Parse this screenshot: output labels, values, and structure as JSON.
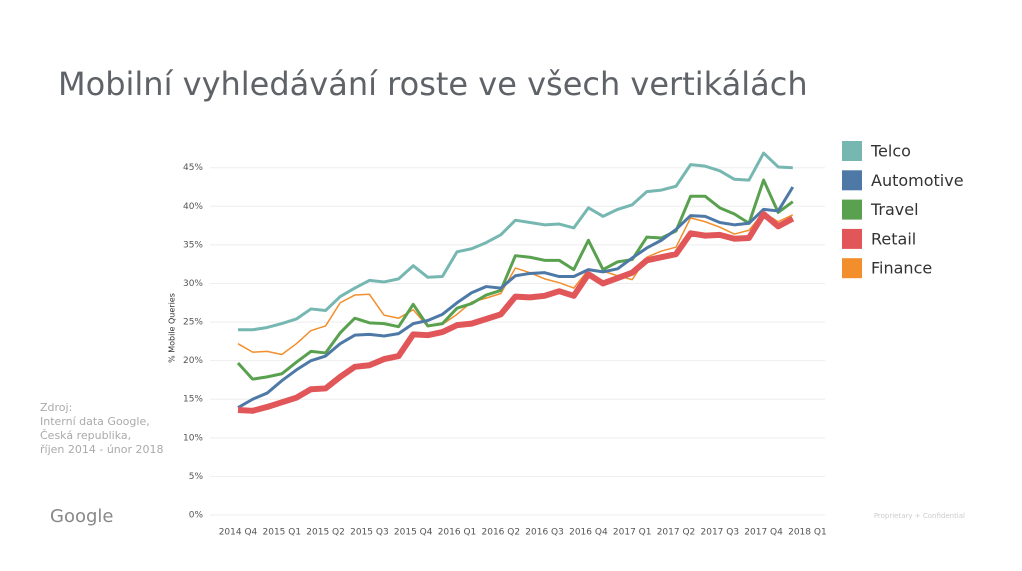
{
  "slide_title": "Mobilní vyhledávání roste ve všech vertikálách",
  "source": [
    "Zdroj:",
    "Interní data Google,",
    "Česká republika,",
    "říjen 2014 - únor 2018"
  ],
  "logo": "Google",
  "footer": "Proprietary + Confidential",
  "chart_data": {
    "type": "line",
    "y_label": "% Mobile Queries",
    "categories": [
      "2014 Q4",
      null,
      null,
      "2015 Q1",
      null,
      null,
      "2015 Q2",
      null,
      null,
      "2015 Q3",
      null,
      null,
      "2015 Q4",
      null,
      null,
      "2016 Q1",
      null,
      null,
      "2016 Q2",
      null,
      null,
      "2016 Q3",
      null,
      null,
      "2016 Q4",
      null,
      null,
      "2017 Q1",
      null,
      null,
      "2017 Q2",
      null,
      null,
      "2017 Q3",
      null,
      null,
      "2017 Q4",
      null,
      null,
      "2018 Q1"
    ],
    "ylim": [
      0,
      46
    ],
    "yticks": [
      {
        "value": 0,
        "label": "0%"
      },
      {
        "value": 5,
        "label": "5%"
      },
      {
        "value": 10,
        "label": "10%"
      },
      {
        "value": 15,
        "label": "15%"
      },
      {
        "value": 20,
        "label": "20%"
      },
      {
        "value": 25,
        "label": "25%"
      },
      {
        "value": 30,
        "label": "30%"
      },
      {
        "value": 35,
        "label": "35%"
      },
      {
        "value": 40,
        "label": "40%"
      },
      {
        "value": 45,
        "label": "45%"
      }
    ],
    "grid": true,
    "legend": "right",
    "series": [
      {
        "name": "Telco",
        "color": "#76b7b2",
        "values": [
          24.0,
          24.0,
          24.3,
          24.8,
          25.4,
          26.7,
          26.5,
          28.3,
          29.4,
          30.4,
          30.2,
          30.6,
          32.3,
          30.8,
          30.9,
          34.1,
          34.5,
          35.3,
          36.3,
          38.2,
          37.9,
          37.6,
          37.7,
          37.2,
          39.8,
          38.7,
          39.6,
          40.2,
          41.9,
          42.1,
          42.6,
          45.4,
          45.2,
          44.6,
          43.5,
          43.4,
          46.9,
          45.1,
          45.0,
          null
        ]
      },
      {
        "name": "Automotive",
        "color": "#4e79a7",
        "values": [
          13.9,
          15.0,
          15.8,
          17.4,
          18.8,
          20.0,
          20.6,
          22.2,
          23.3,
          23.4,
          23.2,
          23.5,
          24.8,
          25.2,
          26.0,
          27.5,
          28.8,
          29.6,
          29.4,
          31.0,
          31.3,
          31.4,
          30.9,
          30.9,
          31.8,
          31.5,
          31.9,
          33.3,
          34.6,
          35.6,
          37.0,
          38.8,
          38.7,
          37.9,
          37.6,
          37.8,
          39.6,
          39.4,
          42.5,
          null
        ]
      },
      {
        "name": "Travel",
        "color": "#59a14f",
        "values": [
          19.7,
          17.6,
          17.9,
          18.3,
          19.8,
          21.2,
          21.0,
          23.6,
          25.5,
          24.9,
          24.8,
          24.4,
          27.3,
          24.5,
          24.8,
          26.8,
          27.4,
          28.5,
          29.1,
          33.6,
          33.4,
          33.0,
          33.0,
          31.8,
          35.6,
          31.8,
          32.8,
          33.1,
          36.0,
          35.9,
          36.8,
          41.3,
          41.3,
          39.8,
          39.0,
          37.8,
          43.4,
          39.2,
          40.6,
          null
        ]
      },
      {
        "name": "Retail",
        "color": "#e15759",
        "values": [
          13.6,
          13.5,
          14.0,
          14.6,
          15.2,
          16.3,
          16.4,
          17.9,
          19.2,
          19.4,
          20.2,
          20.6,
          23.4,
          23.3,
          23.7,
          24.6,
          24.8,
          25.4,
          26.0,
          28.3,
          28.2,
          28.4,
          29.0,
          28.4,
          31.2,
          30.0,
          30.7,
          31.4,
          33.0,
          33.4,
          33.8,
          36.5,
          36.2,
          36.3,
          35.8,
          35.9,
          39.0,
          37.4,
          38.4,
          null
        ]
      },
      {
        "name": "Finance",
        "color": "#f28e2b",
        "values": [
          22.2,
          21.1,
          21.2,
          20.8,
          22.2,
          23.9,
          24.5,
          27.5,
          28.5,
          28.6,
          25.9,
          25.5,
          26.6,
          24.4,
          24.7,
          26.0,
          27.6,
          28.1,
          28.7,
          32.0,
          31.4,
          30.6,
          30.1,
          29.4,
          31.8,
          31.6,
          31.0,
          30.5,
          33.4,
          34.2,
          34.7,
          38.5,
          38.0,
          37.3,
          36.4,
          36.9,
          39.2,
          38.0,
          38.9,
          null
        ]
      }
    ]
  }
}
